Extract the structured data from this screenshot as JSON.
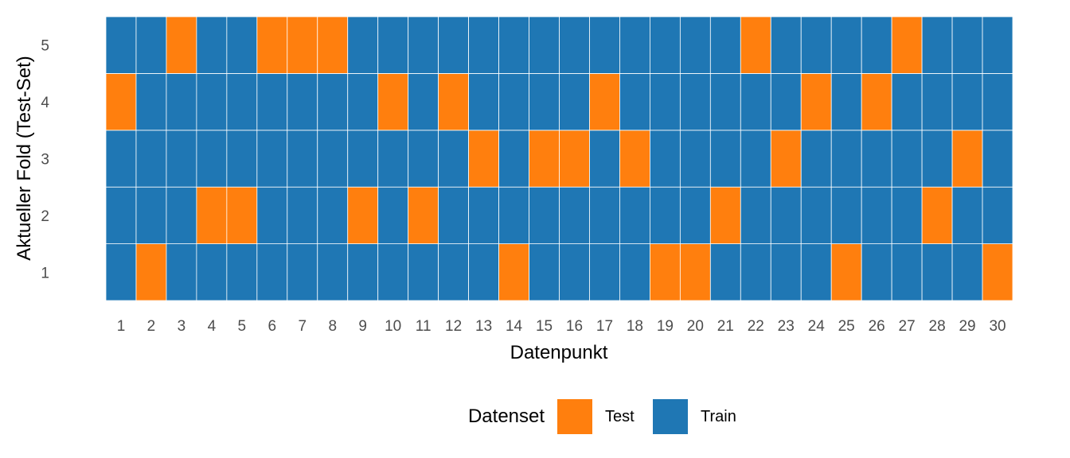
{
  "chart_data": {
    "type": "heatmap",
    "xlabel": "Datenpunkt",
    "ylabel": "Aktueller Fold (Test-Set)",
    "x": [
      1,
      2,
      3,
      4,
      5,
      6,
      7,
      8,
      9,
      10,
      11,
      12,
      13,
      14,
      15,
      16,
      17,
      18,
      19,
      20,
      21,
      22,
      23,
      24,
      25,
      26,
      27,
      28,
      29,
      30
    ],
    "y": [
      1,
      2,
      3,
      4,
      5
    ],
    "test_points": {
      "1": [
        2,
        14,
        19,
        20,
        25,
        30
      ],
      "2": [
        4,
        5,
        9,
        11,
        21,
        28
      ],
      "3": [
        13,
        15,
        16,
        18,
        23,
        29
      ],
      "4": [
        1,
        10,
        12,
        17,
        24,
        26
      ],
      "5": [
        3,
        6,
        7,
        8,
        22,
        27
      ]
    },
    "legend": {
      "title": "Datenset",
      "placement": "bottom",
      "entries": [
        {
          "label": "Test",
          "color": "#ff7f0e"
        },
        {
          "label": "Train",
          "color": "#1f77b4"
        }
      ]
    },
    "grid": false
  }
}
